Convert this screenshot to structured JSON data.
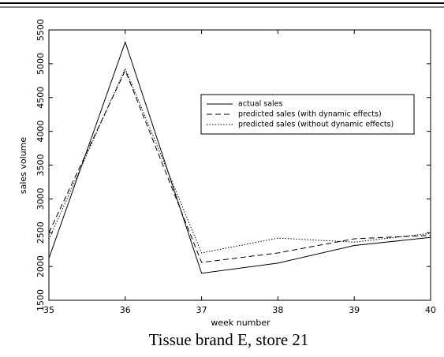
{
  "chart_data": {
    "type": "line",
    "x_label": "week number",
    "y_label": "sales volume",
    "caption": "Tissue brand E, store 21",
    "x": [
      35,
      36,
      37,
      38,
      39,
      40
    ],
    "series": [
      {
        "name": "actual sales",
        "color": "#000000",
        "style": "solid",
        "values": [
          2120,
          5320,
          1900,
          2050,
          2310,
          2430
        ]
      },
      {
        "name": "predicted sales (with dynamic effects)",
        "color": "#000000",
        "style": "dashed",
        "values": [
          2500,
          4900,
          2060,
          2200,
          2410,
          2460
        ]
      },
      {
        "name": "predicted sales (without dynamic effects)",
        "color": "#000000",
        "style": "dotted",
        "values": [
          2400,
          4930,
          2200,
          2420,
          2360,
          2490
        ]
      }
    ],
    "xlim": [
      35,
      40
    ],
    "xticks": [
      35,
      36,
      37,
      38,
      39,
      40
    ],
    "ylim": [
      1500,
      5500
    ],
    "yticks": [
      1500,
      2000,
      2500,
      3000,
      3500,
      4000,
      4500,
      5000,
      5500
    ],
    "grid": false,
    "legend": "upper right"
  }
}
